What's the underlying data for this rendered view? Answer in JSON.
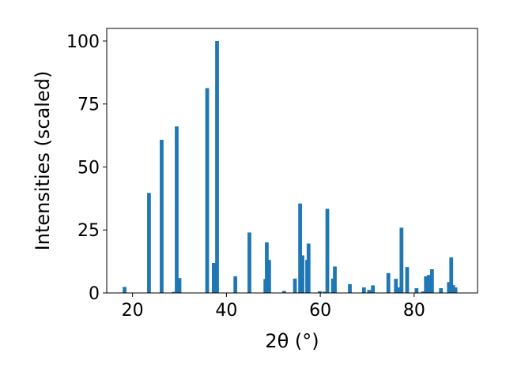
{
  "chart_data": {
    "type": "bar",
    "xlabel": "2θ (°)",
    "ylabel": "Intensities (scaled)",
    "xlim": [
      14.5,
      93.5
    ],
    "ylim": [
      0,
      105
    ],
    "xticks": [
      20,
      40,
      60,
      80
    ],
    "yticks": [
      0,
      25,
      50,
      75,
      100
    ],
    "grid": false,
    "bar_color": "#1f77b4",
    "bar_width": 0.8,
    "x": [
      18.3,
      23.5,
      26.2,
      28.8,
      29.4,
      30.0,
      35.9,
      37.3,
      38.0,
      41.9,
      44.9,
      48.3,
      48.6,
      49.1,
      52.3,
      54.6,
      55.7,
      56.2,
      57.2,
      57.5,
      59.9,
      60.9,
      61.5,
      62.7,
      63.1,
      66.3,
      69.3,
      70.4,
      71.2,
      74.5,
      76.1,
      76.5,
      76.9,
      77.3,
      78.5,
      80.5,
      81.9,
      82.5,
      83.1,
      83.8,
      85.7,
      87.4,
      87.9,
      88.3,
      88.8
    ],
    "values": [
      2.4,
      39.7,
      60.8,
      0.4,
      66.1,
      5.9,
      81.3,
      11.9,
      100,
      6.6,
      24.0,
      5.5,
      20.1,
      13.1,
      0.8,
      5.7,
      35.5,
      14.9,
      13.1,
      19.6,
      0.7,
      0.5,
      33.4,
      5.7,
      10.5,
      3.5,
      2.2,
      1.2,
      3.0,
      7.9,
      5.6,
      1.5,
      2.2,
      25.9,
      10.3,
      1.9,
      0.6,
      6.6,
      7.1,
      9.4,
      1.9,
      4.3,
      14.1,
      3.1,
      2.2
    ]
  }
}
